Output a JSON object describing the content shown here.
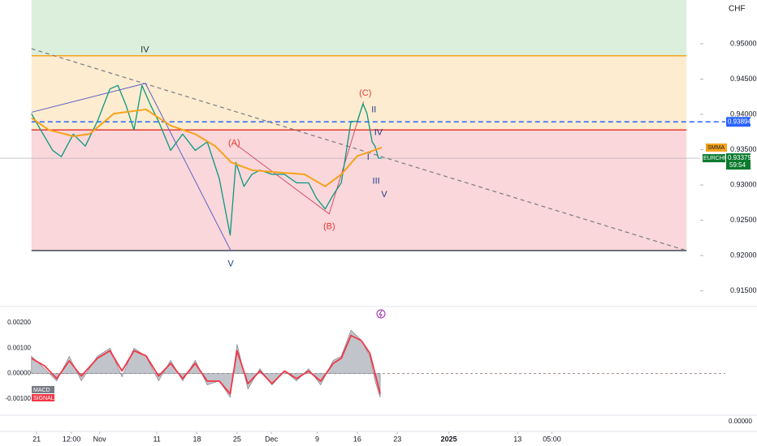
{
  "chart_data": [
    {
      "type": "line",
      "currency": "CHF",
      "xlim": [
        -6.4,
        115.6
      ],
      "ylim": [
        0.9137,
        0.9562
      ],
      "xticks": [
        {
          "value": 0,
          "label": "21"
        },
        {
          "value": 6.1,
          "label": "12:00"
        },
        {
          "value": 11,
          "label": "Nov"
        },
        {
          "value": 21,
          "label": "11"
        },
        {
          "value": 28,
          "label": "18"
        },
        {
          "value": 35,
          "label": "25"
        },
        {
          "value": 41,
          "label": "Dec"
        },
        {
          "value": 49,
          "label": "9"
        },
        {
          "value": 56,
          "label": "16"
        },
        {
          "value": 63,
          "label": "23"
        },
        {
          "value": 72,
          "label": "2025"
        },
        {
          "value": 84,
          "label": "13"
        },
        {
          "value": 90,
          "label": "05:00"
        }
      ],
      "yticks": [
        {
          "value": 0.95,
          "label": "0.95000"
        },
        {
          "value": 0.945,
          "label": "0.94500"
        },
        {
          "value": 0.94,
          "label": "0.94000"
        },
        {
          "value": 0.935,
          "label": "0.93500"
        },
        {
          "value": 0.93,
          "label": "0.93000"
        },
        {
          "value": 0.925,
          "label": "0.92500"
        },
        {
          "value": 0.92,
          "label": "0.92000"
        },
        {
          "value": 0.915,
          "label": "0.91500"
        }
      ],
      "series": [
        {
          "name": "EURCHF",
          "color": "#089981",
          "x": [
            -0.9,
            0.7,
            2.8,
            4.3,
            6.4,
            8.5,
            10.6,
            12.8,
            14.2,
            15.6,
            17.0,
            18.4,
            19.9,
            21.3,
            23.4,
            25.5,
            27.7,
            29.8,
            31.9,
            33.8,
            34.8,
            36.2,
            37.6,
            39.0,
            41.1,
            43.3,
            45.4,
            47.5,
            48.9,
            50.4,
            51.8,
            53.2,
            53.9,
            54.9,
            56.0,
            57.0,
            57.7,
            58.6,
            59.1,
            59.7,
            60.3
          ],
          "values": [
            0.9401,
            0.9378,
            0.9349,
            0.934,
            0.9372,
            0.9355,
            0.939,
            0.9436,
            0.9441,
            0.9413,
            0.9378,
            0.9441,
            0.9413,
            0.939,
            0.9349,
            0.9372,
            0.9349,
            0.9361,
            0.9309,
            0.9229,
            0.9332,
            0.9298,
            0.9315,
            0.9321,
            0.9315,
            0.9315,
            0.9303,
            0.9303,
            0.9281,
            0.9266,
            0.9286,
            0.9303,
            0.9338,
            0.939,
            0.939,
            0.9415,
            0.9401,
            0.9361,
            0.9355,
            0.9338,
            0.9338
          ]
        },
        {
          "name": "SMMA",
          "color": "#f7a21b",
          "x": [
            -0.9,
            2.1,
            6.4,
            9.2,
            13.5,
            19.1,
            23.4,
            27.7,
            31.2,
            34.0,
            37.6,
            41.8,
            46.8,
            50.4,
            53.2,
            56.0,
            58.9,
            60.3
          ],
          "values": [
            0.9395,
            0.9378,
            0.9369,
            0.9372,
            0.9401,
            0.9407,
            0.9384,
            0.9372,
            0.9355,
            0.9332,
            0.9321,
            0.9318,
            0.9315,
            0.9298,
            0.9315,
            0.9341,
            0.9349,
            0.9353
          ]
        }
      ],
      "zones": [
        {
          "from": 0.9483,
          "to": 0.9562,
          "color": "#dcefdc"
        },
        {
          "from": 0.9378,
          "to": 0.9483,
          "color": "#fdecd0"
        },
        {
          "from": 0.9207,
          "to": 0.9378,
          "color": "#fad7da"
        }
      ],
      "zone_x": [
        -0.9,
        113.5
      ],
      "levels": [
        {
          "value": 0.9483,
          "color": "#f7a21b"
        },
        {
          "value": 0.9378,
          "color": "#e53935"
        },
        {
          "value": 0.9207,
          "color": "#434651"
        }
      ],
      "trend_line": {
        "x": [
          -0.9,
          113.5
        ],
        "y": [
          0.9493,
          0.9207
        ]
      },
      "wave_lines": [
        {
          "x": [
            -0.9,
            19.0,
            33.9
          ],
          "y": [
            0.9403,
            0.9444,
            0.9207
          ]
        },
        {
          "x": [
            34.7,
            51.1,
            57.1
          ],
          "y": [
            0.9358,
            0.9259,
            0.9418
          ]
        }
      ],
      "wave_labels": [
        {
          "text": "IV",
          "x": 18.9,
          "y": 0.9491,
          "color": "#2a2e39"
        },
        {
          "text": "V",
          "x": 33.9,
          "y": 0.9188,
          "color": "#1e3a8a"
        },
        {
          "text": "(A)",
          "x": 34.5,
          "y": 0.9359,
          "color": "#e53935"
        },
        {
          "text": "(B)",
          "x": 51.1,
          "y": 0.9241,
          "color": "#e53935"
        },
        {
          "text": "(C)",
          "x": 57.4,
          "y": 0.943,
          "color": "#e53935"
        },
        {
          "text": "II",
          "x": 58.9,
          "y": 0.9406,
          "color": "#1e3a8a"
        },
        {
          "text": "IV",
          "x": 59.7,
          "y": 0.9374,
          "color": "#1e3a8a"
        },
        {
          "text": "I",
          "x": 57.9,
          "y": 0.9339,
          "color": "#1e3a8a"
        },
        {
          "text": "III",
          "x": 59.3,
          "y": 0.9305,
          "color": "#1e3a8a"
        },
        {
          "text": "V",
          "x": 60.7,
          "y": 0.9286,
          "color": "#1e3a8a"
        }
      ],
      "alert_line": {
        "value": 0.93894,
        "label": "0.93894",
        "color": "#2962ff"
      },
      "last_price": {
        "value": 0.93379,
        "label": "0.93379",
        "countdown": "59:54"
      }
    },
    {
      "type": "area",
      "ylim": [
        -0.00158,
        0.00242
      ],
      "yticks": [
        {
          "value": 0.002,
          "label": "0.00200"
        },
        {
          "value": 0.001,
          "label": "0.00100"
        },
        {
          "value": 0,
          "label": "0.00000"
        },
        {
          "value": -0.001,
          "label": "-0.00100"
        }
      ],
      "x": [
        -0.9,
        1.4,
        3.5,
        5.7,
        7.8,
        10.6,
        12.8,
        14.9,
        17.0,
        19.1,
        21.3,
        23.4,
        25.5,
        27.7,
        29.8,
        31.9,
        33.8,
        35.0,
        36.9,
        39.0,
        41.1,
        43.3,
        45.4,
        47.5,
        49.6,
        51.8,
        53.2,
        54.9,
        56.7,
        58.2,
        59.1,
        60.0
      ],
      "series": [
        {
          "name": "MACD",
          "color": "#b2b5be",
          "values": [
            0.00068,
            0.00019,
            -0.00029,
            0.00068,
            -0.00029,
            0.00068,
            0.001,
            -0.00013,
            0.001,
            0.00068,
            -0.00029,
            0.00052,
            -0.00029,
            0.00052,
            -0.00045,
            -0.00029,
            -0.00094,
            0.00116,
            -0.00061,
            0.00019,
            -0.00045,
            0.0001,
            -0.00029,
            0.00019,
            -0.00045,
            0.00052,
            0.00068,
            0.00171,
            0.00132,
            0.00068,
            -0.00029,
            -0.00094
          ]
        },
        {
          "name": "SIGNAL",
          "color": "#f23645",
          "values": [
            0.0006,
            0.0003,
            -0.0002,
            0.0005,
            -0.0001,
            0.0006,
            0.0009,
            0.0001,
            0.0009,
            0.0007,
            -0.0001,
            0.0004,
            -0.0002,
            0.0004,
            -0.0003,
            -0.0003,
            -0.0008,
            0.0009,
            -0.0004,
            0.0001,
            -0.0004,
            0.0001,
            -0.0002,
            0.0001,
            -0.0003,
            0.0004,
            0.0006,
            0.0015,
            0.0013,
            0.0008,
            0.0,
            -0.0008
          ]
        }
      ],
      "zero_color": "#a1887f"
    },
    {
      "type": "empty",
      "ylim": [
        -0.001,
        0.001
      ],
      "yticks": [
        {
          "value": 0,
          "label": "0.00000"
        }
      ]
    }
  ]
}
